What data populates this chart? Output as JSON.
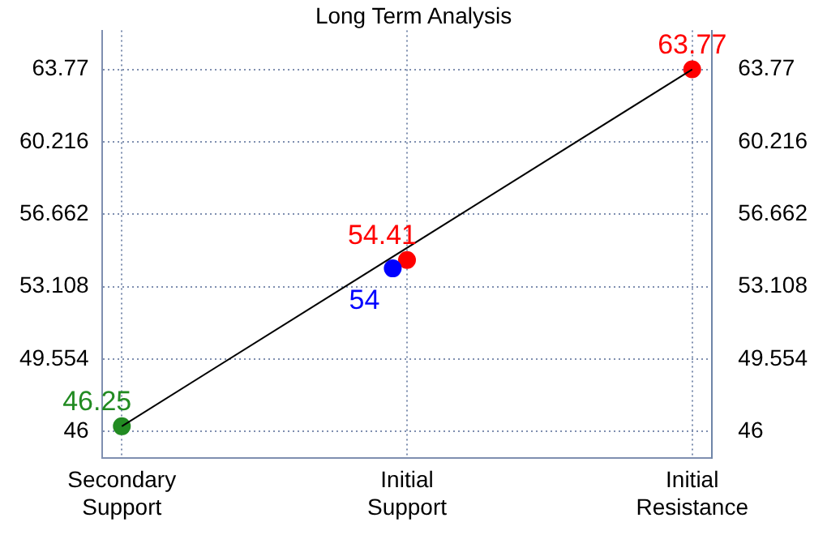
{
  "chart_data": {
    "type": "line",
    "title": "Long Term Analysis",
    "categories": [
      "Secondary Support",
      "Initial Support",
      "Initial Resistance"
    ],
    "series": [
      {
        "color": "#000000",
        "values": [
          46.25,
          null,
          63.77
        ],
        "marker": "none"
      },
      {
        "type": "scatter",
        "color": "#228b22",
        "values": [
          46.25,
          null,
          null
        ],
        "marker": "circle",
        "value_labels": [
          "46.25",
          null,
          null
        ]
      },
      {
        "type": "scatter",
        "color": "#0000ff",
        "values": [
          null,
          54,
          null
        ],
        "marker": "circle",
        "value_labels": [
          null,
          "54",
          null
        ]
      },
      {
        "type": "scatter",
        "color": "#ff0000",
        "values": [
          null,
          54.41,
          63.77
        ],
        "marker": "circle",
        "value_labels": [
          null,
          "54.41",
          "63.77"
        ]
      }
    ],
    "ylim": [
      44.7,
      65.68
    ],
    "yticks": [
      46,
      49.554,
      53.108,
      56.662,
      60.216,
      63.77
    ],
    "y2lim": [
      44.7,
      65.68
    ],
    "y2ticks": [
      46,
      49.554,
      53.108,
      56.662,
      60.216,
      63.77
    ],
    "grid": true,
    "legend": false
  }
}
